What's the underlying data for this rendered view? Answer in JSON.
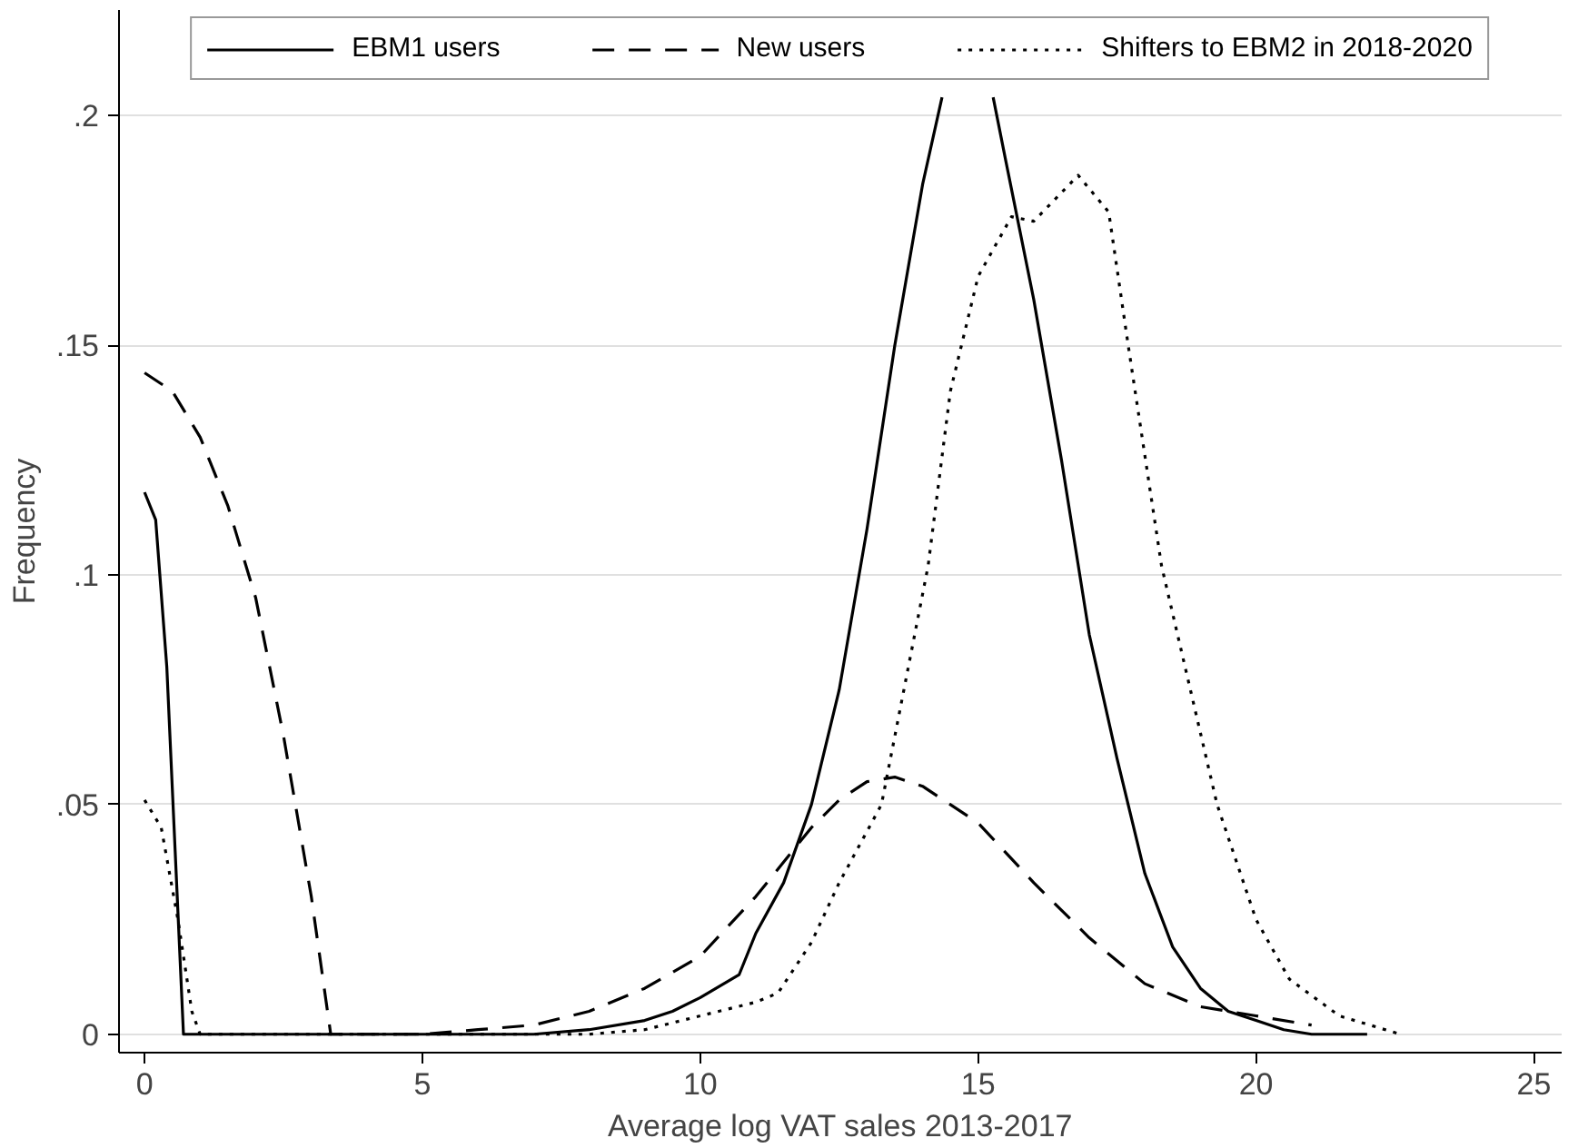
{
  "chart_data": {
    "type": "line",
    "xlabel": "Average log VAT sales 2013-2017",
    "ylabel": "Frequency",
    "xlim": [
      -0.46,
      25.5
    ],
    "ylim": [
      -0.004,
      0.223
    ],
    "xticks": [
      0,
      5,
      10,
      15,
      20,
      25
    ],
    "yticks": [
      {
        "value": 0,
        "label": "0"
      },
      {
        "value": 0.05,
        "label": ".05"
      },
      {
        "value": 0.1,
        "label": ".1"
      },
      {
        "value": 0.15,
        "label": ".15"
      },
      {
        "value": 0.2,
        "label": ".2"
      }
    ],
    "grid": "y",
    "legend": "top",
    "series": [
      {
        "name": "EBM1 users",
        "color": "#000000",
        "line_style": "solid",
        "x": [
          0,
          0.2,
          0.4,
          0.55,
          0.7,
          1,
          5,
          7,
          8,
          9,
          9.5,
          10,
          10.7,
          11,
          11.5,
          12,
          12.5,
          13,
          13.5,
          14,
          14.35,
          14.8,
          15.27,
          15.5,
          16,
          16.5,
          17,
          17.5,
          18,
          18.5,
          19,
          19.5,
          20,
          20.5,
          21,
          22
        ],
        "values": [
          0.118,
          0.112,
          0.08,
          0.04,
          0,
          0,
          0,
          0,
          0.001,
          0.003,
          0.005,
          0.008,
          0.013,
          0.022,
          0.033,
          0.05,
          0.075,
          0.11,
          0.15,
          0.185,
          0.204,
          null,
          0.204,
          0.19,
          0.16,
          0.125,
          0.087,
          0.06,
          0.035,
          0.019,
          0.01,
          0.005,
          0.003,
          0.001,
          0,
          0
        ]
      },
      {
        "name": "New users",
        "color": "#000000",
        "line_style": "dashed",
        "x": [
          0,
          0.5,
          1,
          1.5,
          2,
          2.5,
          3,
          3.35,
          4,
          5,
          6,
          7,
          8,
          9,
          10,
          11,
          12,
          12.5,
          13,
          13.5,
          14,
          15,
          16,
          17,
          18,
          19,
          20,
          21
        ],
        "values": [
          0.144,
          0.14,
          0.13,
          0.115,
          0.095,
          0.065,
          0.03,
          0,
          0,
          0,
          0.001,
          0.002,
          0.005,
          0.01,
          0.017,
          0.03,
          0.045,
          0.051,
          0.055,
          0.056,
          0.054,
          0.046,
          0.033,
          0.021,
          0.011,
          0.006,
          0.004,
          0.002
        ]
      },
      {
        "name": "Shifters to EBM2 in 2018-2020",
        "color": "#000000",
        "line_style": "dotted",
        "x": [
          0,
          0.3,
          0.6,
          0.85,
          1,
          5,
          8,
          9,
          10,
          11,
          11.4,
          12,
          12.5,
          13.26,
          14.1,
          14.5,
          15,
          15.6,
          16,
          16.4,
          16.8,
          17.35,
          17.7,
          18.3,
          19.3,
          20,
          20.6,
          21.5,
          22.6
        ],
        "values": [
          0.051,
          0.045,
          0.025,
          0.005,
          0,
          0,
          0,
          0.001,
          0.004,
          0.007,
          0.009,
          0.02,
          0.033,
          0.05,
          0.102,
          0.14,
          0.165,
          0.178,
          0.177,
          0.182,
          0.187,
          0.179,
          0.15,
          0.102,
          0.05,
          0.025,
          0.012,
          0.004,
          0
        ]
      }
    ]
  }
}
